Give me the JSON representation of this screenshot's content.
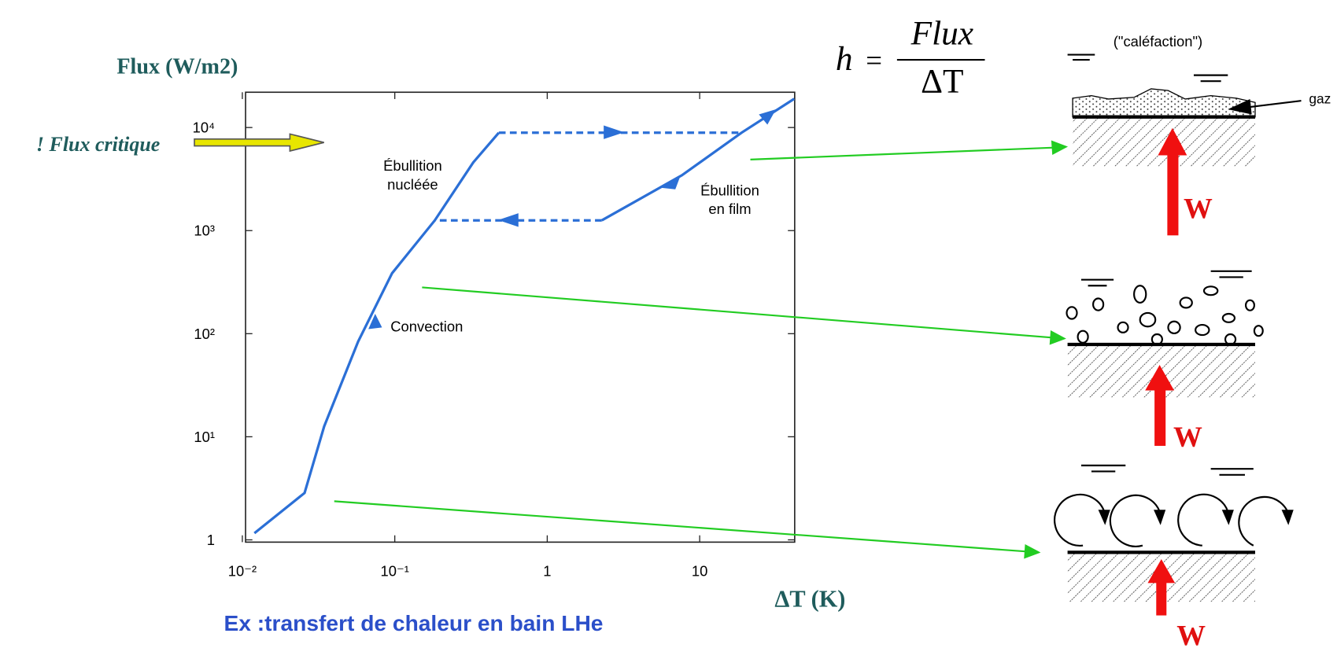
{
  "chart_data": {
    "type": "line",
    "log_x": true,
    "log_y": true,
    "grid": false,
    "y_label": "Flux (W/m2)",
    "x_label": "ΔT (K)",
    "xlim": [
      0.0105,
      42
    ],
    "ylim": [
      0.95,
      22000
    ],
    "xticks": [
      {
        "value": 0.01,
        "label": "10⁻²"
      },
      {
        "value": 0.1,
        "label": "10⁻¹"
      },
      1,
      10
    ],
    "yticks": [
      1,
      {
        "value": 10,
        "label": "10¹"
      },
      {
        "value": 100,
        "label": "10²"
      },
      {
        "value": 1000,
        "label": "10³"
      },
      {
        "value": 10000,
        "label": "10⁴"
      }
    ],
    "series": [
      {
        "color": "#2b6fd6",
        "dashed": false,
        "x": [
          0.012,
          0.0256,
          0.0344,
          0.0575,
          0.096,
          0.183,
          0.327,
          0.481
        ],
        "values": [
          1.16,
          2.85,
          12.6,
          84,
          386,
          1257,
          4580,
          8900
        ]
      },
      {
        "color": "#2b6fd6",
        "dashed": true,
        "x": [
          0.481,
          18.8
        ],
        "values": [
          8900,
          8900
        ]
      },
      {
        "color": "#2b6fd6",
        "dashed": false,
        "x": [
          2.28,
          7.64,
          18.8,
          41.7
        ],
        "values": [
          1257,
          3440,
          8900,
          19000
        ]
      },
      {
        "color": "#2b6fd6",
        "dashed": true,
        "x": [
          2.28,
          0.183
        ],
        "values": [
          1257,
          1257
        ]
      }
    ],
    "annotations": [
      "Ébullition",
      "nucléée",
      "Convection",
      "Ébullition",
      "en film"
    ]
  },
  "slide": {
    "critical_flux": "! Flux critique",
    "caption": "Ex :transfert de chaleur en bain LHe",
    "formula": {
      "lhs": "h",
      "equals": "=",
      "numerator": "Flux",
      "denominator": "ΔT"
    },
    "diagrams": {
      "calefaction": "(\"caléfaction\")",
      "gas": "gaz",
      "heat": [
        "W",
        "W",
        "W"
      ]
    }
  }
}
